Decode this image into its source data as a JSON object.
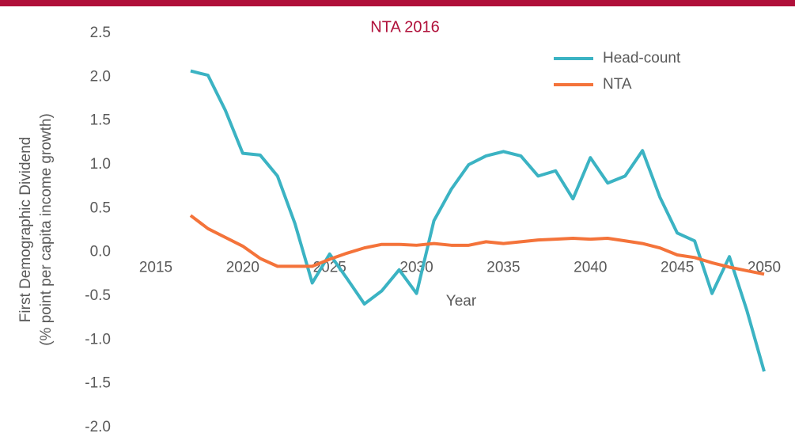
{
  "chart_data": {
    "type": "line",
    "title": "NTA 2016",
    "xlabel": "Year",
    "ylabel": [
      "First Demographic Dividend",
      "(% point per capita income growth)"
    ],
    "x": [
      2017,
      2018,
      2019,
      2020,
      2021,
      2022,
      2023,
      2024,
      2025,
      2026,
      2027,
      2028,
      2029,
      2030,
      2031,
      2032,
      2033,
      2034,
      2035,
      2036,
      2037,
      2038,
      2039,
      2040,
      2041,
      2042,
      2043,
      2044,
      2045,
      2046,
      2047,
      2048,
      2049,
      2050
    ],
    "series": [
      {
        "name": "Head-count",
        "color": "#3bb3c3",
        "values": [
          2.07,
          2.02,
          1.62,
          1.13,
          1.11,
          0.87,
          0.33,
          -0.35,
          -0.02,
          -0.3,
          -0.59,
          -0.44,
          -0.2,
          -0.47,
          0.36,
          0.72,
          1.0,
          1.1,
          1.15,
          1.1,
          0.87,
          0.93,
          0.61,
          1.08,
          0.79,
          0.87,
          1.16,
          0.63,
          0.22,
          0.13,
          -0.47,
          -0.05,
          -0.66,
          -1.36
        ]
      },
      {
        "name": "NTA",
        "color": "#f4733a",
        "values": [
          0.42,
          0.27,
          0.17,
          0.07,
          -0.07,
          -0.16,
          -0.16,
          -0.16,
          -0.08,
          -0.01,
          0.05,
          0.09,
          0.09,
          0.08,
          0.1,
          0.08,
          0.08,
          0.12,
          0.1,
          0.12,
          0.14,
          0.15,
          0.16,
          0.15,
          0.16,
          0.13,
          0.1,
          0.05,
          -0.03,
          -0.06,
          -0.12,
          -0.17,
          -0.21,
          -0.25
        ]
      }
    ],
    "xlim": [
      2015,
      2050
    ],
    "xticks": [
      2015,
      2020,
      2025,
      2030,
      2035,
      2040,
      2045,
      2050
    ],
    "ylim": [
      -2,
      2.5
    ],
    "yticks": [
      2.5,
      {
        "value": 2,
        "label": "2.0"
      },
      1.5,
      {
        "value": 1,
        "label": "1.0"
      },
      0.5,
      {
        "value": 0,
        "label": "0.0"
      },
      -0.5,
      {
        "value": -1,
        "label": "-1.0"
      },
      -1.5,
      {
        "value": -2,
        "label": "-2.0"
      }
    ],
    "legend": "top-right",
    "grid": false
  }
}
